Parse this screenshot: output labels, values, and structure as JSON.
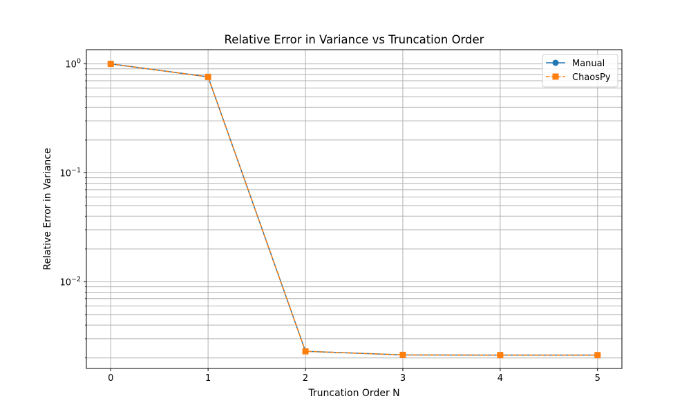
{
  "chart_data": {
    "type": "line",
    "title": "Relative Error in Variance vs Truncation Order",
    "xlabel": "Truncation Order N",
    "ylabel": "Relative Error in Variance",
    "yscale": "log",
    "xlim": [
      -0.25,
      5.25
    ],
    "ylim": [
      0.0016,
      1.35
    ],
    "xticks": [
      0,
      1,
      2,
      3,
      4,
      5
    ],
    "xtick_labels": [
      "0",
      "1",
      "2",
      "3",
      "4",
      "5"
    ],
    "yticks": [
      {
        "value": 1,
        "base": "10",
        "exp": "0"
      },
      {
        "value": 0.1,
        "base": "10",
        "exp": "−1"
      },
      {
        "value": 0.01,
        "base": "10",
        "exp": "−2"
      }
    ],
    "grid": true,
    "legend_position": "top-right",
    "x": [
      0,
      1,
      2,
      3,
      4,
      5
    ],
    "series": [
      {
        "name": "Manual",
        "values": [
          1.0,
          0.76,
          0.0023,
          0.00213,
          0.00212,
          0.00212
        ],
        "color": "#1f77b4",
        "marker": "circle",
        "linestyle": "solid"
      },
      {
        "name": "ChaosPy",
        "values": [
          1.0,
          0.76,
          0.0023,
          0.00213,
          0.00212,
          0.00212
        ],
        "color": "#ff7f0e",
        "marker": "square",
        "linestyle": "dashed"
      }
    ]
  }
}
